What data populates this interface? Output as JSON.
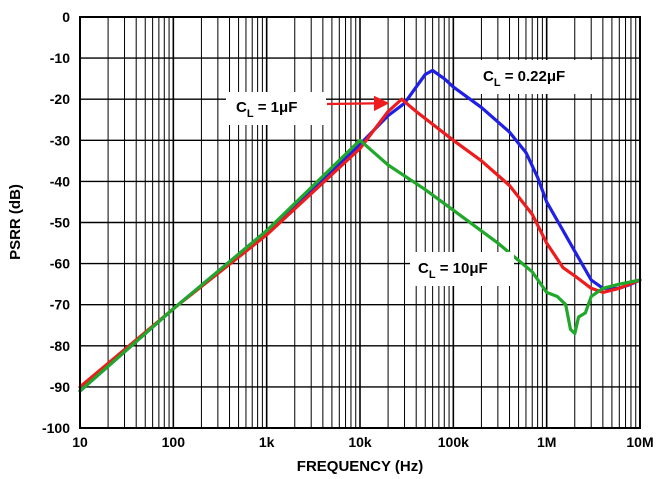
{
  "chart_data": {
    "type": "line",
    "xlabel": "FREQUENCY (Hz)",
    "ylabel": "PSRR (dB)",
    "x_scale": "log",
    "xlim": [
      10,
      10000000
    ],
    "ylim": [
      -100,
      0
    ],
    "grid": true,
    "x_ticks": [
      {
        "value": 10,
        "label": "10"
      },
      {
        "value": 100,
        "label": "100"
      },
      {
        "value": 1000,
        "label": "1k"
      },
      {
        "value": 10000,
        "label": "10k"
      },
      {
        "value": 100000,
        "label": "100k"
      },
      {
        "value": 1000000,
        "label": "1M"
      },
      {
        "value": 10000000,
        "label": "10M"
      }
    ],
    "y_ticks": [
      0,
      -10,
      -20,
      -30,
      -40,
      -50,
      -60,
      -70,
      -80,
      -90,
      -100
    ],
    "annotations": [
      {
        "id": "cl-022",
        "text_main": "C",
        "text_sub": "L",
        "text_rest": " = 0.22μF",
        "series": "blue"
      },
      {
        "id": "cl-1",
        "text_main": "C",
        "text_sub": "L",
        "text_rest": " = 1μF",
        "series": "red"
      },
      {
        "id": "cl-10",
        "text_main": "C",
        "text_sub": "L",
        "text_rest": " = 10μF",
        "series": "green"
      }
    ],
    "series": [
      {
        "key": "blue",
        "color": "#1f1fe6",
        "points": [
          [
            10,
            -91
          ],
          [
            100,
            -71
          ],
          [
            1000,
            -52
          ],
          [
            10000,
            -31
          ],
          [
            20000,
            -24
          ],
          [
            30000,
            -21
          ],
          [
            40000,
            -17
          ],
          [
            50000,
            -14
          ],
          [
            60000,
            -13
          ],
          [
            80000,
            -15
          ],
          [
            100000,
            -17
          ],
          [
            200000,
            -22
          ],
          [
            400000,
            -28
          ],
          [
            600000,
            -33
          ],
          [
            800000,
            -39
          ],
          [
            1000000,
            -45
          ],
          [
            1500000,
            -52
          ],
          [
            2000000,
            -57
          ],
          [
            3000000,
            -64
          ],
          [
            4000000,
            -66
          ],
          [
            5000000,
            -66
          ],
          [
            6000000,
            -66
          ],
          [
            8000000,
            -65
          ],
          [
            10000000,
            -64
          ]
        ]
      },
      {
        "key": "red",
        "color": "#ee1c1c",
        "points": [
          [
            10,
            -90
          ],
          [
            100,
            -71
          ],
          [
            1000,
            -53
          ],
          [
            10000,
            -32
          ],
          [
            20000,
            -23
          ],
          [
            28000,
            -20
          ],
          [
            40000,
            -23
          ],
          [
            100000,
            -30
          ],
          [
            200000,
            -35
          ],
          [
            400000,
            -41
          ],
          [
            700000,
            -48
          ],
          [
            1000000,
            -55
          ],
          [
            1500000,
            -61
          ],
          [
            2000000,
            -63
          ],
          [
            3000000,
            -66
          ],
          [
            4000000,
            -67
          ],
          [
            6000000,
            -66
          ],
          [
            10000000,
            -64
          ]
        ]
      },
      {
        "key": "green",
        "color": "#1fa82a",
        "points": [
          [
            10,
            -91
          ],
          [
            100,
            -71
          ],
          [
            1000,
            -52
          ],
          [
            10000,
            -30
          ],
          [
            20000,
            -36
          ],
          [
            50000,
            -42
          ],
          [
            100000,
            -47
          ],
          [
            300000,
            -55
          ],
          [
            700000,
            -62
          ],
          [
            1000000,
            -67
          ],
          [
            1300000,
            -68
          ],
          [
            1600000,
            -70
          ],
          [
            1800000,
            -76
          ],
          [
            2000000,
            -77
          ],
          [
            2200000,
            -73
          ],
          [
            2600000,
            -72
          ],
          [
            3000000,
            -68
          ],
          [
            4000000,
            -66
          ],
          [
            6000000,
            -65
          ],
          [
            10000000,
            -64
          ]
        ]
      }
    ]
  }
}
